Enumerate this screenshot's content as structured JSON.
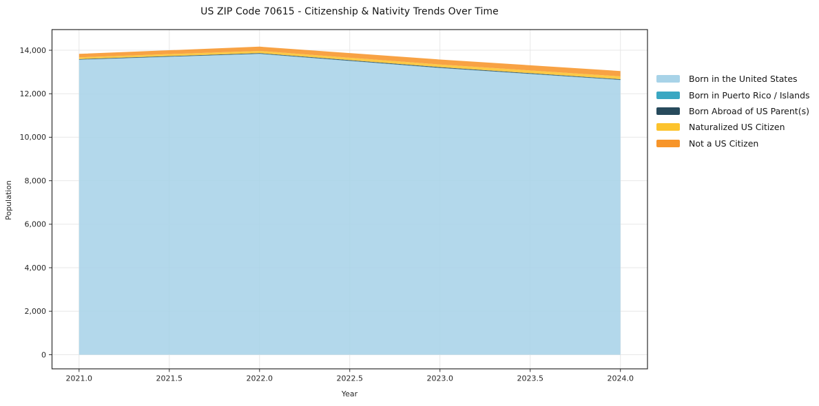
{
  "title": "US ZIP Code 70615 - Citizenship & Nativity Trends Over Time",
  "chart_data": {
    "type": "area",
    "stacked": true,
    "x": [
      2021,
      2022,
      2023,
      2024
    ],
    "series": [
      {
        "name": "Born in the United States",
        "color": "#a8d3e8",
        "values": [
          13560,
          13830,
          13180,
          12630
        ]
      },
      {
        "name": "Born in Puerto Rico / Islands",
        "color": "#3aa7c2",
        "values": [
          10,
          10,
          10,
          10
        ]
      },
      {
        "name": "Born Abroad of US Parent(s)",
        "color": "#274a5c",
        "values": [
          25,
          30,
          35,
          30
        ]
      },
      {
        "name": "Naturalized US Citizen",
        "color": "#fcc32d",
        "values": [
          80,
          100,
          120,
          130
        ]
      },
      {
        "name": "Not a US Citizen",
        "color": "#f7952a",
        "values": [
          160,
          195,
          230,
          245
        ]
      }
    ],
    "title": "US ZIP Code 70615 - Citizenship & Nativity Trends Over Time",
    "xlabel": "Year",
    "ylabel": "Population",
    "xlim": [
      2020.85,
      2024.15
    ],
    "ylim": [
      -650,
      14950
    ],
    "xticks": [
      2021.0,
      2021.5,
      2022.0,
      2022.5,
      2023.0,
      2023.5,
      2024.0
    ],
    "yticks": [
      0,
      2000,
      4000,
      6000,
      8000,
      10000,
      12000,
      14000
    ],
    "grid": true,
    "legend_position": "right-outside",
    "fill_opacity": 0.88,
    "grid_color": "#e7e7e7",
    "spine_color": "#2b2b2b",
    "tick_label_color": "#262626"
  }
}
